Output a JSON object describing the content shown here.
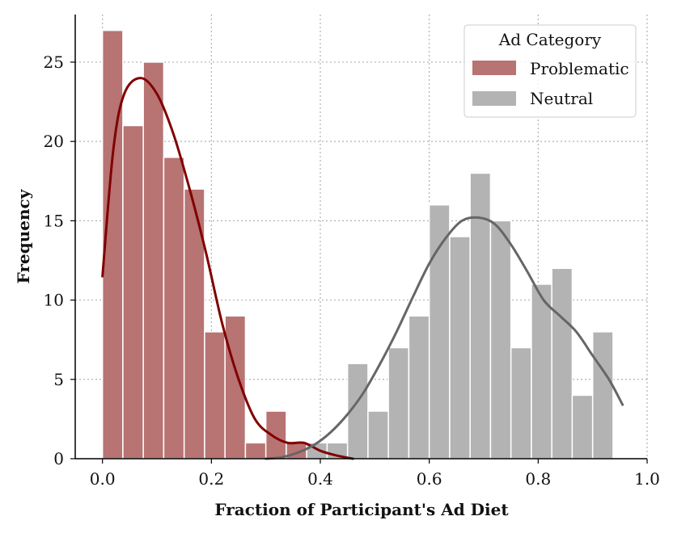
{
  "chart_data": {
    "type": "bar",
    "subtype": "histogram-with-kde",
    "xlabel": "Fraction of Participant's Ad Diet",
    "ylabel": "Frequency",
    "xlim": [
      -0.05,
      1.0
    ],
    "ylim": [
      0,
      28
    ],
    "x_ticks": [
      "0.0",
      "0.2",
      "0.4",
      "0.6",
      "0.8",
      "1.0"
    ],
    "y_ticks": [
      "0",
      "5",
      "10",
      "15",
      "20",
      "25"
    ],
    "grid": true,
    "legend": {
      "title": "Ad Category",
      "placement": "top-right"
    },
    "bin_width": 0.0375,
    "series": [
      {
        "name": "Problematic",
        "color": "#b87373",
        "kde_color": "#800000",
        "bin_starts": [
          0.0,
          0.0375,
          0.075,
          0.1125,
          0.15,
          0.1875,
          0.225,
          0.2625,
          0.3,
          0.3375,
          0.375
        ],
        "counts": [
          27,
          21,
          25,
          19,
          17,
          8,
          9,
          1,
          3,
          1,
          1
        ],
        "kde": [
          [
            0.0,
            11.5
          ],
          [
            0.02,
            19.5
          ],
          [
            0.04,
            23.0
          ],
          [
            0.07,
            24.0
          ],
          [
            0.1,
            23.0
          ],
          [
            0.13,
            20.5
          ],
          [
            0.16,
            17.0
          ],
          [
            0.19,
            13.0
          ],
          [
            0.22,
            8.5
          ],
          [
            0.25,
            5.0
          ],
          [
            0.28,
            2.5
          ],
          [
            0.31,
            1.5
          ],
          [
            0.34,
            1.0
          ],
          [
            0.37,
            1.0
          ],
          [
            0.4,
            0.5
          ],
          [
            0.43,
            0.2
          ],
          [
            0.46,
            0.0
          ]
        ]
      },
      {
        "name": "Neutral",
        "color": "#b3b3b3",
        "kde_color": "#666666",
        "bin_starts": [
          0.375,
          0.4125,
          0.45,
          0.4875,
          0.525,
          0.5625,
          0.6,
          0.6375,
          0.675,
          0.7125,
          0.75,
          0.7875,
          0.825,
          0.8625,
          0.9,
          0.9375
        ],
        "counts": [
          1,
          1,
          6,
          3,
          7,
          9,
          16,
          14,
          18,
          15,
          7,
          11,
          12,
          4,
          8,
          0
        ],
        "kde": [
          [
            0.3,
            0.0
          ],
          [
            0.33,
            0.1
          ],
          [
            0.36,
            0.4
          ],
          [
            0.39,
            0.9
          ],
          [
            0.42,
            1.7
          ],
          [
            0.45,
            2.8
          ],
          [
            0.48,
            4.2
          ],
          [
            0.51,
            6.0
          ],
          [
            0.54,
            8.0
          ],
          [
            0.57,
            10.2
          ],
          [
            0.6,
            12.3
          ],
          [
            0.63,
            13.9
          ],
          [
            0.66,
            15.0
          ],
          [
            0.69,
            15.2
          ],
          [
            0.72,
            14.8
          ],
          [
            0.75,
            13.5
          ],
          [
            0.78,
            11.8
          ],
          [
            0.81,
            10.0
          ],
          [
            0.84,
            9.0
          ],
          [
            0.87,
            8.0
          ],
          [
            0.9,
            6.5
          ],
          [
            0.93,
            5.0
          ],
          [
            0.955,
            3.4
          ]
        ]
      }
    ]
  }
}
